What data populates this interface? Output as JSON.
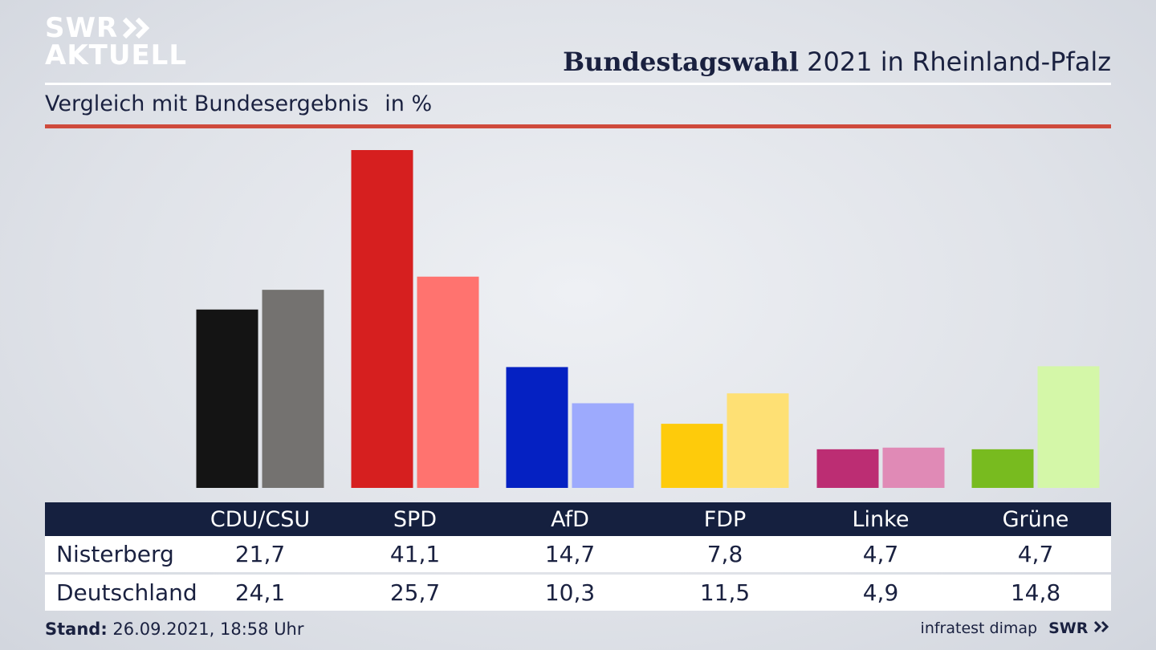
{
  "logo": {
    "line1": "SWR",
    "line2": "AKTUELL",
    "footer": "SWR"
  },
  "title": {
    "bold": "Bundestagswahl",
    "rest": "2021 in Rheinland-Pfalz"
  },
  "subtitle": {
    "text": "Vergleich mit Bundesergebnis",
    "unit": "in %"
  },
  "footer": {
    "stand_label": "Stand:",
    "stand_value": "26.09.2021, 18:58 Uhr",
    "source": "infratest dimap"
  },
  "colors": {
    "header_bg": "#15203f",
    "accent_rule": "#cf4a3c",
    "parties_primary": [
      "#141414",
      "#d61f1f",
      "#0521c2",
      "#fecb0b",
      "#bc2d73",
      "#78bb1f"
    ],
    "parties_secondary": [
      "#747270",
      "#ff736f",
      "#9daafd",
      "#fee074",
      "#e08ab6",
      "#d4f7a8"
    ]
  },
  "chart_data": {
    "type": "bar",
    "categories": [
      "CDU/CSU",
      "SPD",
      "AfD",
      "FDP",
      "Linke",
      "Grüne"
    ],
    "series": [
      {
        "name": "Nisterberg",
        "values": [
          21.7,
          41.1,
          14.7,
          7.8,
          4.7,
          4.7
        ]
      },
      {
        "name": "Deutschland",
        "values": [
          24.1,
          25.7,
          10.3,
          11.5,
          4.9,
          14.8
        ]
      }
    ],
    "ylim": [
      0,
      41.1
    ],
    "grid": false,
    "legend": "table-below"
  },
  "table": {
    "header": [
      "CDU/CSU",
      "SPD",
      "AfD",
      "FDP",
      "Linke",
      "Grüne"
    ],
    "rows": [
      {
        "label": "Nisterberg",
        "values": [
          "21,7",
          "41,1",
          "14,7",
          "7,8",
          "4,7",
          "4,7"
        ]
      },
      {
        "label": "Deutschland",
        "values": [
          "24,1",
          "25,7",
          "10,3",
          "11,5",
          "4,9",
          "14,8"
        ]
      }
    ]
  }
}
